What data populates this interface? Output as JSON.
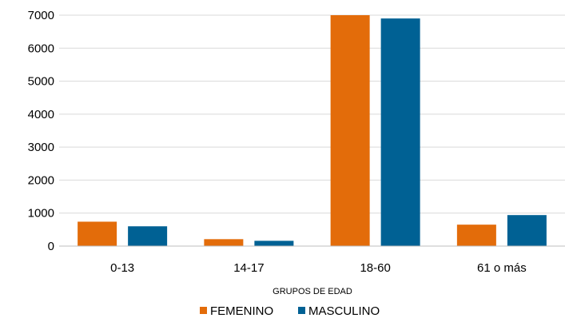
{
  "chart_data": {
    "type": "bar",
    "title": "",
    "xlabel": "GRUPOS DE EDAD",
    "ylabel": "",
    "categories": [
      "0-13",
      "14-17",
      "18-60",
      "61 o más"
    ],
    "series": [
      {
        "name": "FEMENINO",
        "color": "#E36C0A",
        "values": [
          740,
          210,
          7010,
          650
        ]
      },
      {
        "name": "MASCULINO",
        "color": "#006194",
        "values": [
          600,
          160,
          6900,
          940
        ]
      }
    ],
    "ylim": [
      0,
      7000
    ],
    "yticks": [
      0,
      1000,
      2000,
      3000,
      4000,
      5000,
      6000,
      7000
    ],
    "grid": true,
    "legend": "bottom"
  }
}
